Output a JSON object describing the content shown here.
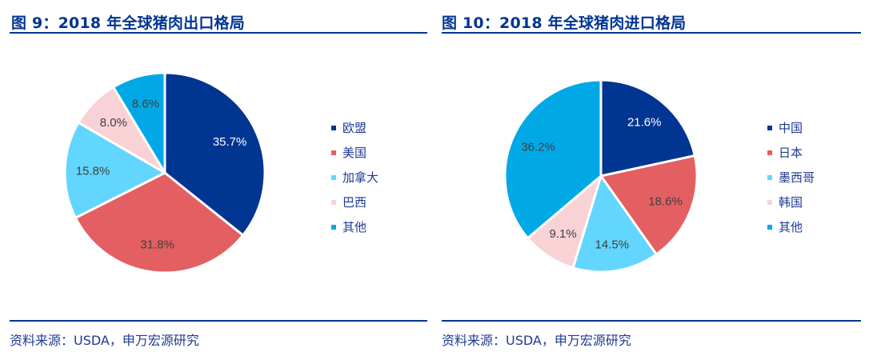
{
  "source_text": "资料来源：USDA，申万宏源研究",
  "chart_data": [
    {
      "type": "pie",
      "title": "图 9：2018 年全球猪肉出口格局",
      "legend_position": "right",
      "categories": [
        "欧盟",
        "美国",
        "加拿大",
        "巴西",
        "其他"
      ],
      "values": [
        35.7,
        31.8,
        15.8,
        8.0,
        8.6
      ],
      "labels": [
        "35.7%",
        "31.8%",
        "15.8%",
        "8.0%",
        "8.6%"
      ],
      "colors": [
        "#003591",
        "#E45F62",
        "#62D6FF",
        "#F8D2D4",
        "#00A9E6"
      ],
      "label_colors": [
        "#ffffff",
        "#404040",
        "#404040",
        "#404040",
        "#404040"
      ],
      "source": "资料来源：USDA，申万宏源研究"
    },
    {
      "type": "pie",
      "title": "图 10：2018 年全球猪肉进口格局",
      "legend_position": "right",
      "categories": [
        "中国",
        "日本",
        "墨西哥",
        "韩国",
        "其他"
      ],
      "values": [
        21.6,
        18.6,
        14.5,
        9.1,
        36.2
      ],
      "labels": [
        "21.6%",
        "18.6%",
        "14.5%",
        "9.1%",
        "36.2%"
      ],
      "colors": [
        "#003591",
        "#E45F62",
        "#62D6FF",
        "#F8D2D4",
        "#00A9E6"
      ],
      "label_colors": [
        "#ffffff",
        "#404040",
        "#404040",
        "#404040",
        "#404040"
      ],
      "source": "资料来源：USDA，申万宏源研究"
    }
  ]
}
